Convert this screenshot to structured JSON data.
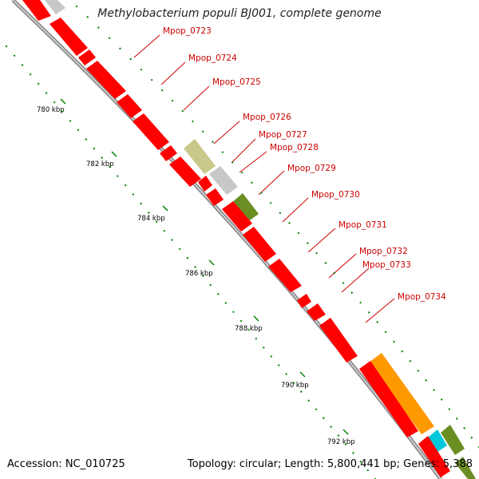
{
  "title": "Methylobacterium populi BJ001, complete genome",
  "accession": "Accession: NC_010725",
  "summary": "Topology: circular; Length: 5,800,441 bp; Genes: 5,388",
  "colors": {
    "backbone": "#9a9a9a",
    "gene_red": "#ff0000",
    "gene_khaki": "#c8c88a",
    "gene_gray": "#c8c8c8",
    "gene_olive": "#6b8e23",
    "gene_orange": "#ff9900",
    "gene_cyan": "#00c8d8",
    "tick": "#008000",
    "label": "#cc0000"
  },
  "gene_labels": [
    "Mpop_0723",
    "Mpop_0724",
    "Mpop_0725",
    "Mpop_0726",
    "Mpop_0727",
    "Mpop_0728",
    "Mpop_0729",
    "Mpop_0730",
    "Mpop_0731",
    "Mpop_0732",
    "Mpop_0733",
    "Mpop_0734"
  ],
  "tick_labels": [
    "780 kbp",
    "782 kbp",
    "784 kbp",
    "786 kbp",
    "788 kbp",
    "790 kbp",
    "792 kbp"
  ]
}
